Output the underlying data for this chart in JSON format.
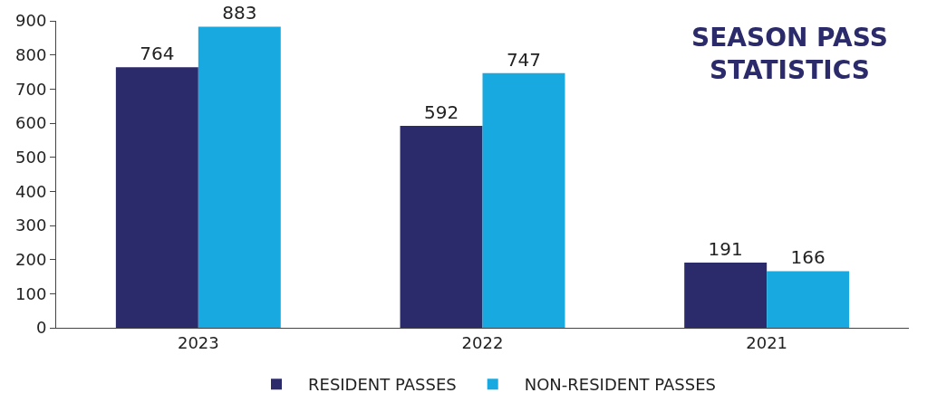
{
  "chart_data": {
    "type": "bar",
    "title": "SEASON PASS STATISTICS",
    "categories": [
      "2023",
      "2022",
      "2021"
    ],
    "series": [
      {
        "name": "RESIDENT PASSES",
        "color": "#2b2a6b",
        "values": [
          764,
          592,
          191
        ]
      },
      {
        "name": "NON-RESIDENT PASSES",
        "color": "#19a9e1",
        "values": [
          883,
          747,
          166
        ]
      }
    ],
    "ylim": [
      0,
      900
    ],
    "yticks": [
      0,
      100,
      200,
      300,
      400,
      500,
      600,
      700,
      800,
      900
    ],
    "data_labels": true,
    "legend": "bottom"
  }
}
